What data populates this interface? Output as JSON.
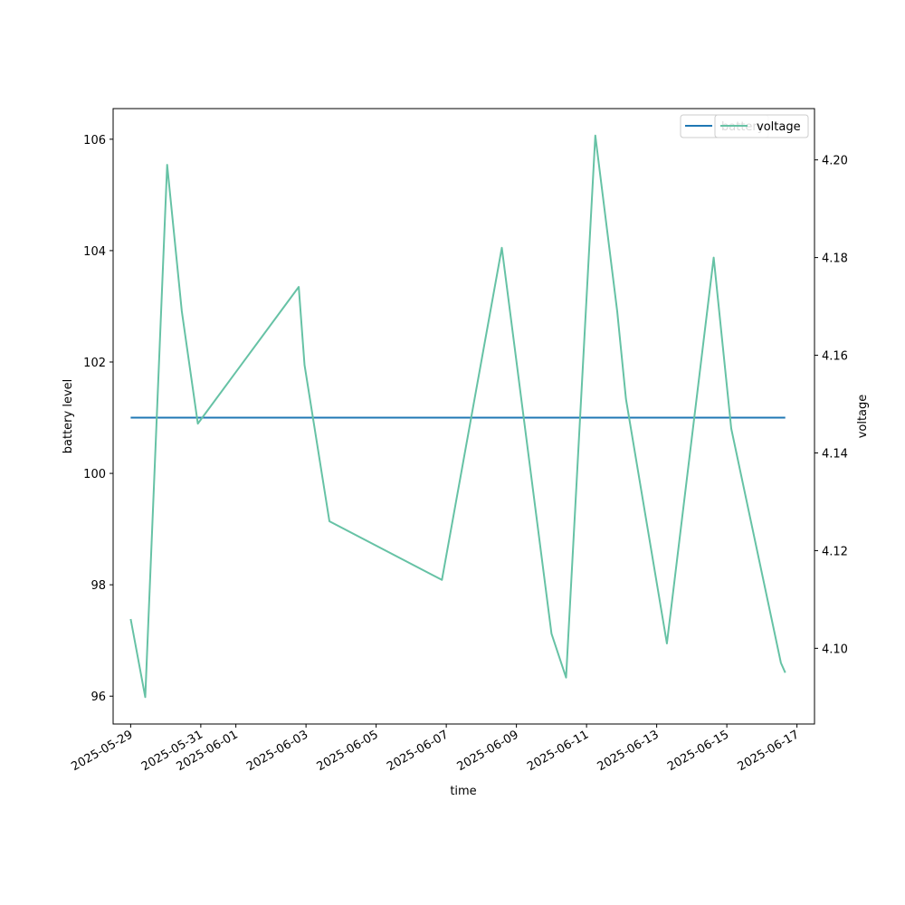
{
  "chart_data": {
    "type": "line",
    "xlabel": "time",
    "ylabel": "battery level",
    "y2label": "voltage",
    "x_range": [
      "2025-05-28T12:00",
      "2025-06-17T12:00"
    ],
    "ylim": [
      95.5,
      106.55
    ],
    "y2lim": [
      4.0845,
      4.2105
    ],
    "x_ticks": [
      "2025-05-29",
      "2025-05-31",
      "2025-06-01",
      "2025-06-03",
      "2025-06-05",
      "2025-06-07",
      "2025-06-09",
      "2025-06-11",
      "2025-06-13",
      "2025-06-15",
      "2025-06-17"
    ],
    "y_ticks": [
      "96",
      "98",
      "100",
      "102",
      "104",
      "106"
    ],
    "y2_ticks": [
      "4.10",
      "4.12",
      "4.14",
      "4.16",
      "4.18",
      "4.20"
    ],
    "grid": false,
    "legend_placement": "top-right",
    "series": [
      {
        "name": "battery",
        "axis": "left",
        "color": "#1f77b4",
        "points": [
          {
            "t": "2025-05-29T00:00",
            "v": 101
          },
          {
            "t": "2025-06-16T16:00",
            "v": 101
          }
        ]
      },
      {
        "name": "voltage",
        "axis": "right",
        "color": "#66c2a5",
        "points": [
          {
            "t": "2025-05-29T00:00",
            "v": 4.106
          },
          {
            "t": "2025-05-29T10:00",
            "v": 4.09
          },
          {
            "t": "2025-05-30T01:00",
            "v": 4.199
          },
          {
            "t": "2025-05-30T11:00",
            "v": 4.169
          },
          {
            "t": "2025-05-30T22:00",
            "v": 4.146
          },
          {
            "t": "2025-06-02T19:00",
            "v": 4.174
          },
          {
            "t": "2025-06-02T23:00",
            "v": 4.158
          },
          {
            "t": "2025-06-03T16:00",
            "v": 4.126
          },
          {
            "t": "2025-06-06T21:00",
            "v": 4.114
          },
          {
            "t": "2025-06-08T14:00",
            "v": 4.182
          },
          {
            "t": "2025-06-10T00:00",
            "v": 4.103
          },
          {
            "t": "2025-06-10T10:00",
            "v": 4.094
          },
          {
            "t": "2025-06-11T06:00",
            "v": 4.205
          },
          {
            "t": "2025-06-11T21:00",
            "v": 4.169
          },
          {
            "t": "2025-06-12T03:00",
            "v": 4.151
          },
          {
            "t": "2025-06-13T07:00",
            "v": 4.101
          },
          {
            "t": "2025-06-14T15:00",
            "v": 4.18
          },
          {
            "t": "2025-06-15T03:00",
            "v": 4.145
          },
          {
            "t": "2025-06-16T13:00",
            "v": 4.097
          },
          {
            "t": "2025-06-16T16:00",
            "v": 4.095
          }
        ]
      }
    ]
  }
}
